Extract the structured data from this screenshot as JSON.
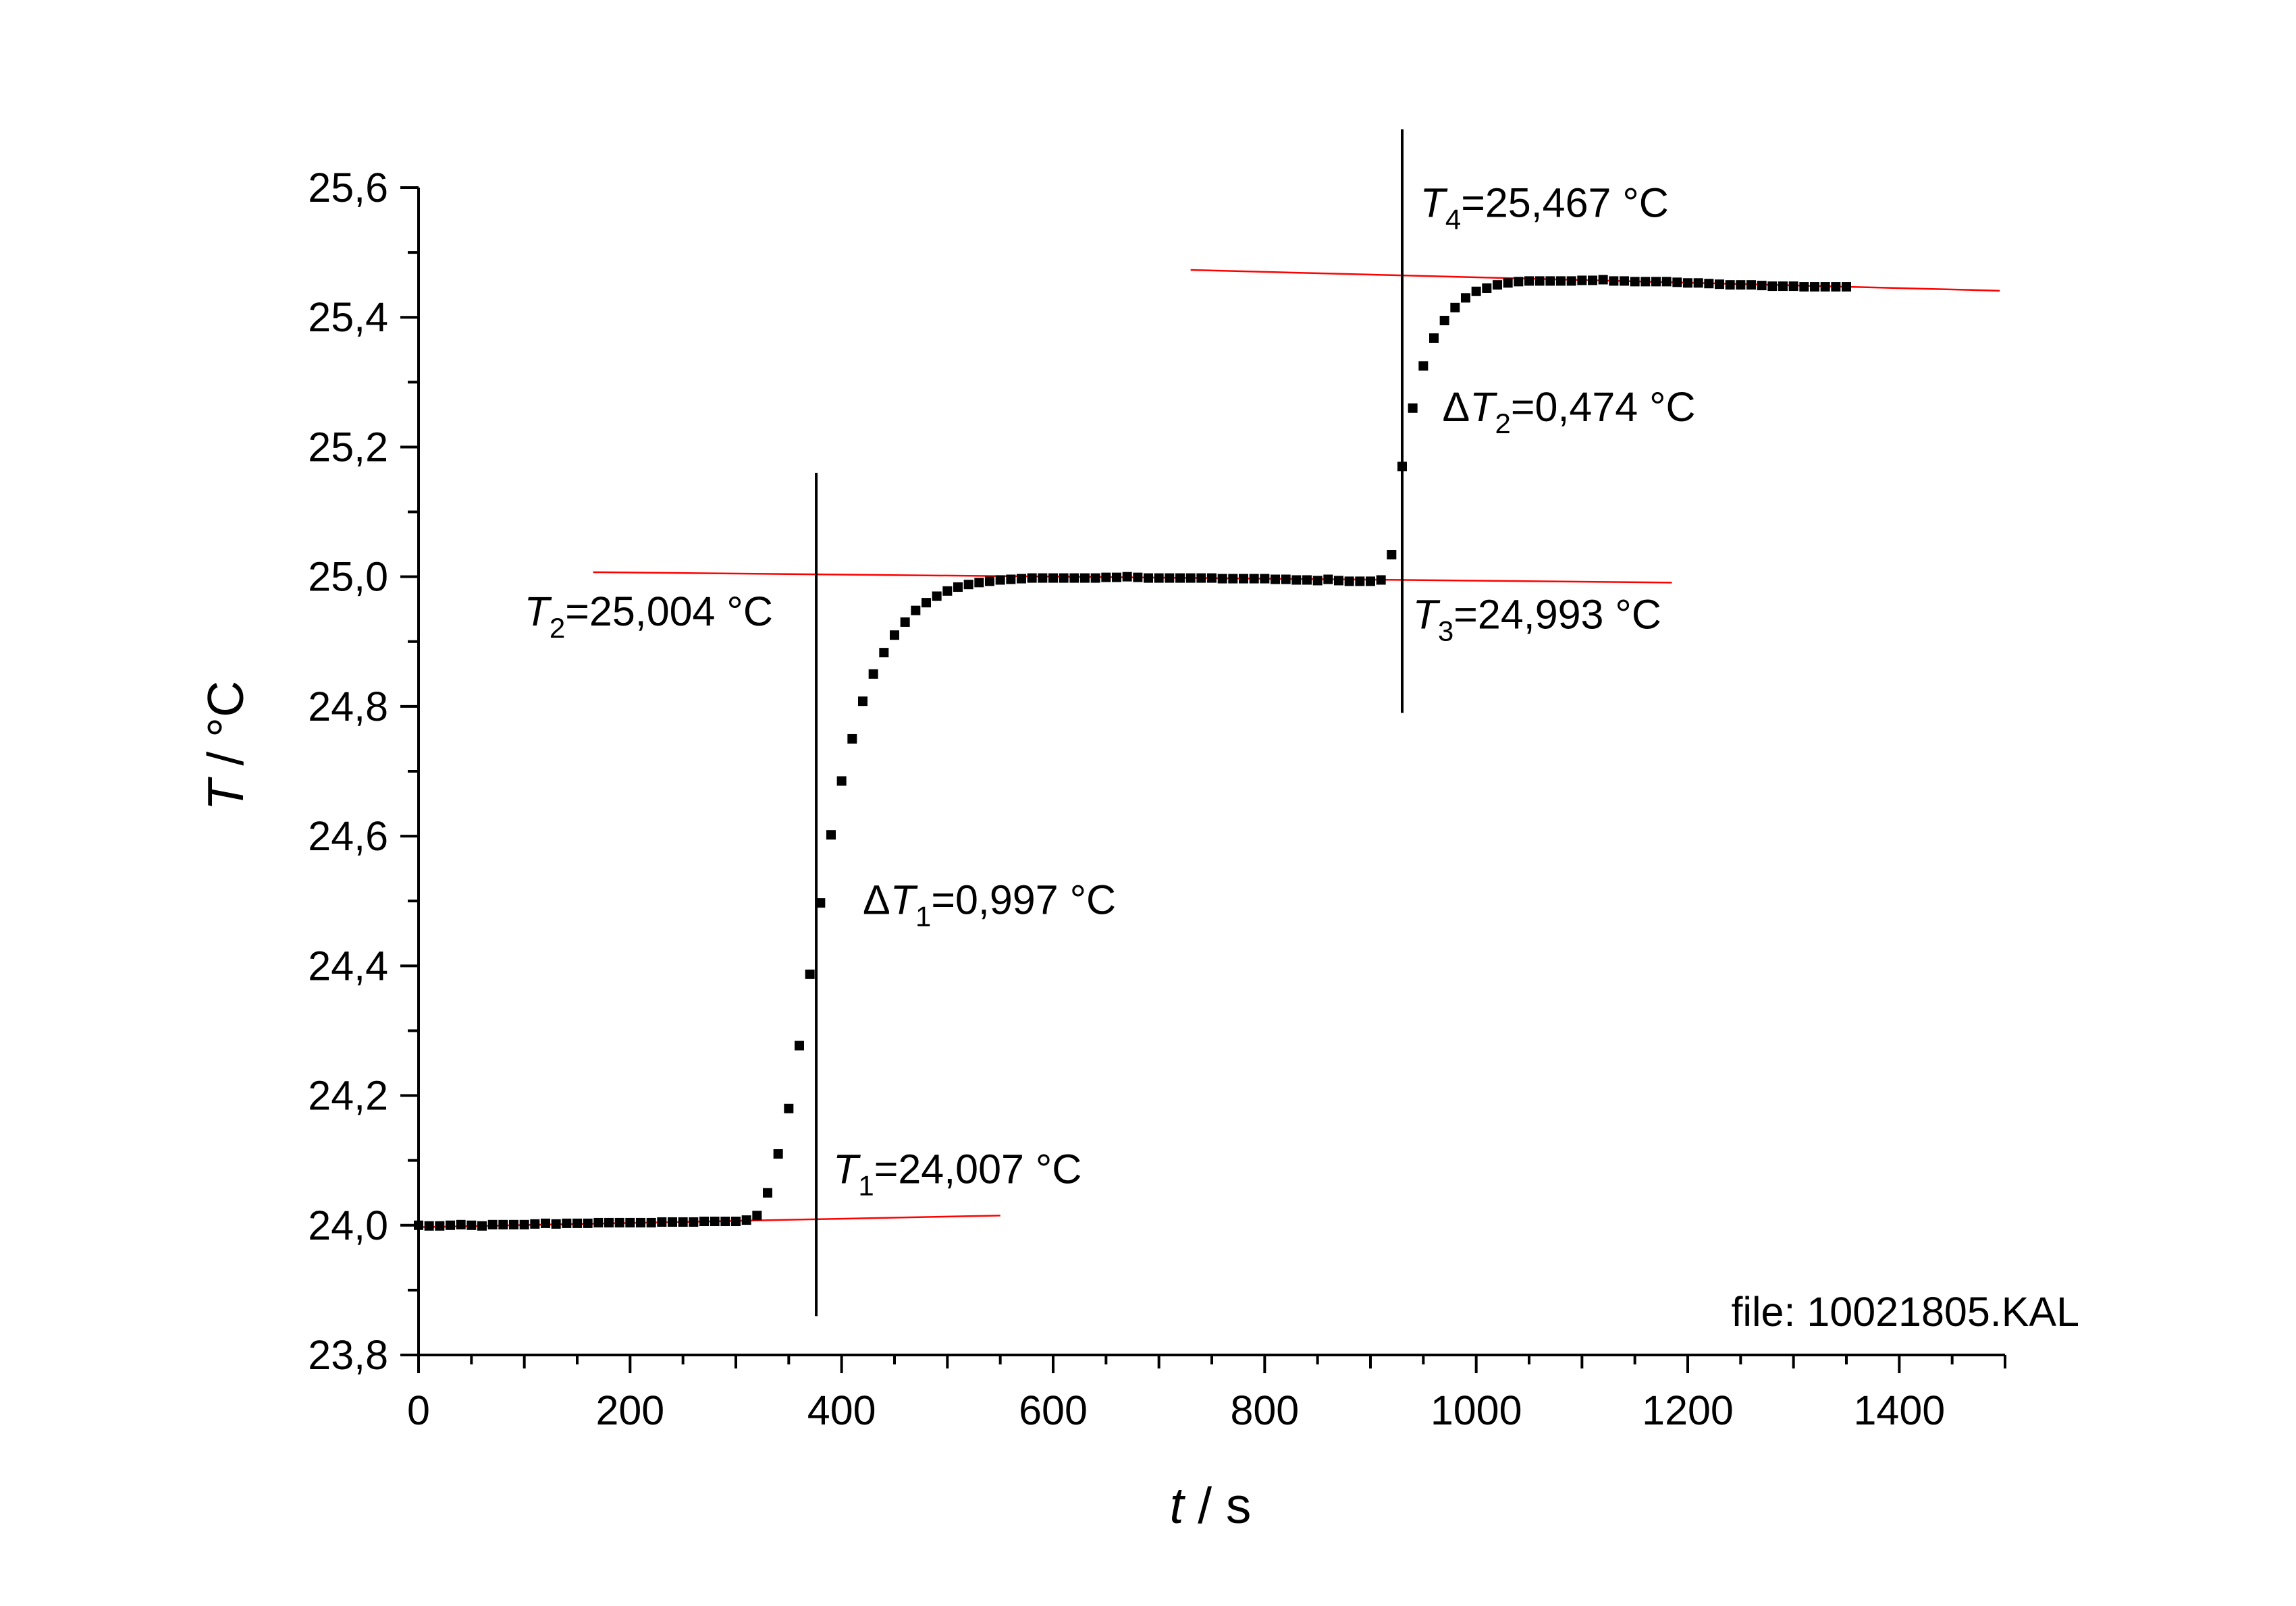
{
  "chart_data": {
    "type": "scatter",
    "title": "",
    "xlabel": {
      "italic": "t",
      "rest": " / s"
    },
    "ylabel": {
      "italic": "T",
      "rest": " / °C"
    },
    "xlim": [
      0,
      1500
    ],
    "ylim": [
      23.8,
      25.6
    ],
    "x_ticks": [
      0,
      200,
      400,
      600,
      800,
      1000,
      1200,
      1400
    ],
    "x_tick_labels": [
      "0",
      "200",
      "400",
      "600",
      "800",
      "1000",
      "1200",
      "1400"
    ],
    "y_ticks": [
      23.8,
      24.0,
      24.2,
      24.4,
      24.6,
      24.8,
      25.0,
      25.2,
      25.4,
      25.6
    ],
    "y_tick_labels": [
      "23,8",
      "24,0",
      "24,2",
      "24,4",
      "24,6",
      "24,8",
      "25,0",
      "25,2",
      "25,4",
      "25,6"
    ],
    "grid": false,
    "series": [
      {
        "marker": "square",
        "color": "#000000",
        "x": [
          0,
          10,
          20,
          30,
          40,
          50,
          60,
          70,
          80,
          90,
          100,
          110,
          120,
          130,
          140,
          150,
          160,
          170,
          180,
          190,
          200,
          210,
          220,
          230,
          240,
          250,
          260,
          270,
          280,
          290,
          300,
          310,
          320,
          330,
          340,
          350,
          360,
          370,
          380,
          390,
          400,
          410,
          420,
          430,
          440,
          450,
          460,
          470,
          480,
          490,
          500,
          510,
          520,
          530,
          540,
          550,
          560,
          570,
          580,
          590,
          600,
          610,
          620,
          630,
          640,
          650,
          660,
          670,
          680,
          690,
          700,
          710,
          720,
          730,
          740,
          750,
          760,
          770,
          780,
          790,
          800,
          810,
          820,
          830,
          840,
          850,
          860,
          870,
          880,
          890,
          900,
          910,
          920,
          930,
          940,
          950,
          960,
          970,
          980,
          990,
          1000,
          1010,
          1020,
          1030,
          1040,
          1050,
          1060,
          1070,
          1080,
          1090,
          1100,
          1110,
          1120,
          1130,
          1140,
          1150,
          1160,
          1170,
          1180,
          1190,
          1200,
          1210,
          1220,
          1230,
          1240,
          1250,
          1260,
          1270,
          1280,
          1290,
          1300,
          1310,
          1320,
          1330,
          1340,
          1350
        ],
        "y": [
          24.0,
          23.999,
          23.999,
          24.0,
          24.001,
          24.0,
          23.999,
          24.001,
          24.001,
          24.001,
          24.001,
          24.002,
          24.003,
          24.002,
          24.003,
          24.003,
          24.003,
          24.004,
          24.004,
          24.004,
          24.004,
          24.004,
          24.004,
          24.005,
          24.005,
          24.005,
          24.005,
          24.006,
          24.006,
          24.006,
          24.006,
          24.008,
          24.015,
          24.05,
          24.11,
          24.18,
          24.277,
          24.387,
          24.497,
          24.602,
          24.685,
          24.75,
          24.808,
          24.85,
          24.883,
          24.91,
          24.93,
          24.948,
          24.96,
          24.97,
          24.978,
          24.984,
          24.988,
          24.991,
          24.993,
          24.995,
          24.996,
          24.997,
          24.998,
          24.998,
          24.998,
          24.998,
          24.998,
          24.998,
          24.998,
          24.999,
          24.999,
          25.0,
          24.999,
          24.998,
          24.998,
          24.998,
          24.998,
          24.998,
          24.998,
          24.998,
          24.997,
          24.997,
          24.997,
          24.997,
          24.997,
          24.996,
          24.996,
          24.995,
          24.995,
          24.994,
          24.996,
          24.994,
          24.993,
          24.993,
          24.993,
          24.995,
          25.034,
          25.17,
          25.26,
          25.325,
          25.368,
          25.395,
          25.415,
          25.43,
          25.44,
          25.445,
          25.45,
          25.453,
          25.455,
          25.456,
          25.456,
          25.456,
          25.456,
          25.456,
          25.457,
          25.457,
          25.458,
          25.456,
          25.456,
          25.455,
          25.455,
          25.455,
          25.455,
          25.454,
          25.453,
          25.453,
          25.452,
          25.451,
          25.45,
          25.45,
          25.45,
          25.449,
          25.448,
          25.448,
          25.448,
          25.447,
          25.447,
          25.447,
          25.447,
          25.447
        ]
      }
    ],
    "fit_lines": [
      {
        "color": "#ff0000",
        "x": [
          0,
          550
        ],
        "y": [
          23.997,
          24.015
        ]
      },
      {
        "color": "#ff0000",
        "x": [
          165,
          1185
        ],
        "y": [
          25.007,
          24.991
        ]
      },
      {
        "color": "#ff0000",
        "x": [
          730,
          1495
        ],
        "y": [
          25.473,
          25.441
        ]
      }
    ],
    "vertical_lines": [
      {
        "color": "#000000",
        "x": 376,
        "y": [
          23.86,
          25.16
        ]
      },
      {
        "color": "#000000",
        "x": 930,
        "y": [
          24.79,
          25.69
        ]
      }
    ],
    "annotations": [
      {
        "prefix": "",
        "var": "T",
        "sub": "1",
        "value": "=24,007 °C",
        "x": 392,
        "y": 24.065
      },
      {
        "prefix": "",
        "var": "T",
        "sub": "2",
        "value": "=25,004 °C",
        "x": 100,
        "y": 24.925
      },
      {
        "prefix": "",
        "var": "T",
        "sub": "3",
        "value": "=24,993 °C",
        "x": 940,
        "y": 24.92
      },
      {
        "prefix": "",
        "var": "T",
        "sub": "4",
        "value": "=25,467 °C",
        "x": 947,
        "y": 25.555
      },
      {
        "prefix": "Δ",
        "var": "T",
        "sub": "1",
        "value": "=0,997 °C",
        "x": 420,
        "y": 24.48
      },
      {
        "prefix": "Δ",
        "var": "T",
        "sub": "2",
        "value": "=0,474 °C",
        "x": 968,
        "y": 25.24
      }
    ],
    "file_label": "file: 10021805.KAL"
  }
}
